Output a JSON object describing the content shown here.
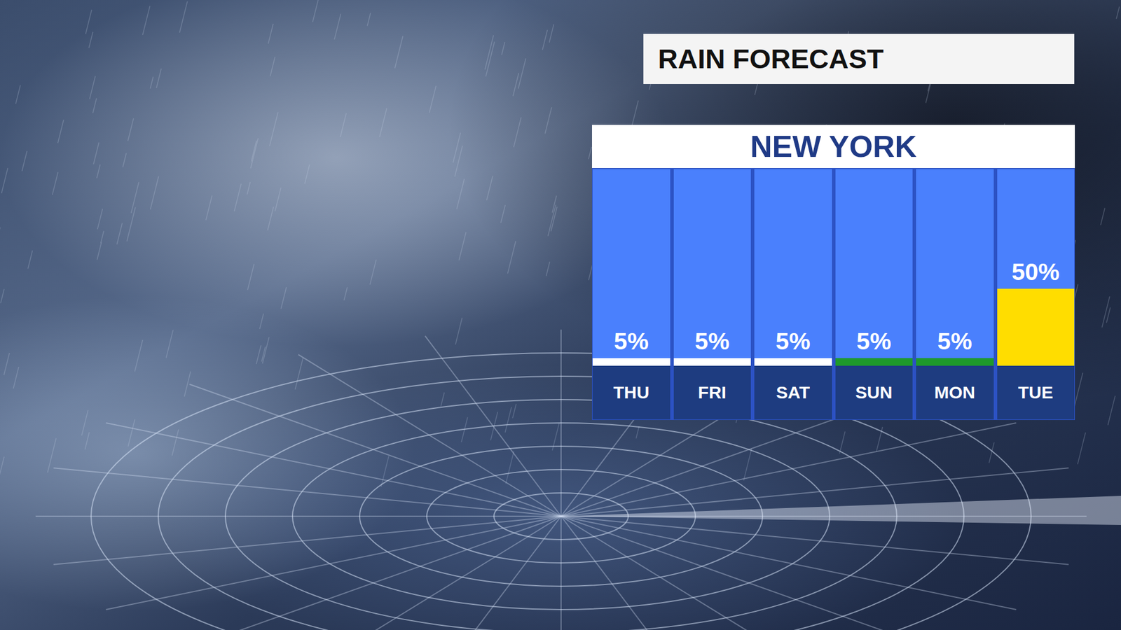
{
  "chart_data": {
    "type": "bar",
    "title": "RAIN FORECAST",
    "subtitle": "NEW YORK",
    "categories": [
      "THU",
      "FRI",
      "SAT",
      "SUN",
      "MON",
      "TUE"
    ],
    "values": [
      5,
      5,
      5,
      5,
      5,
      50
    ],
    "value_labels": [
      "5%",
      "5%",
      "5%",
      "5%",
      "5%",
      "50%"
    ],
    "colors": [
      "#ffffff",
      "#ffffff",
      "#ffffff",
      "#1e9a2a",
      "#1e9a2a",
      "#ffdd00"
    ],
    "ylim": [
      0,
      100
    ],
    "data_labels": true,
    "tick_labels": false,
    "grid": false
  }
}
